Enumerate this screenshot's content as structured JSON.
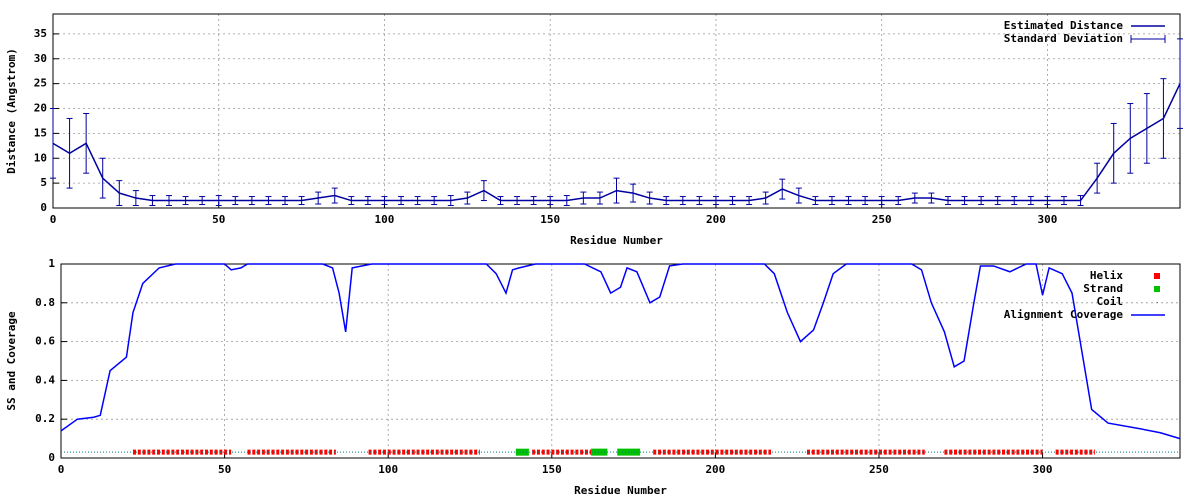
{
  "chart_data": [
    {
      "type": "line",
      "xlabel": "Residue Number",
      "ylabel": "Distance (Angstrom)",
      "xlim": [
        0,
        340
      ],
      "ylim": [
        0,
        39
      ],
      "xticks": [
        0,
        50,
        100,
        150,
        200,
        250,
        300
      ],
      "yticks": [
        0,
        5,
        10,
        15,
        20,
        25,
        30,
        35
      ],
      "grid": true,
      "legend": "upper right",
      "x": [
        0,
        5,
        10,
        15,
        20,
        25,
        30,
        35,
        40,
        45,
        50,
        55,
        60,
        65,
        70,
        75,
        80,
        85,
        90,
        95,
        100,
        105,
        110,
        115,
        120,
        125,
        130,
        135,
        140,
        145,
        150,
        155,
        160,
        165,
        170,
        175,
        180,
        185,
        190,
        195,
        200,
        205,
        210,
        215,
        220,
        225,
        230,
        235,
        240,
        245,
        250,
        255,
        260,
        265,
        270,
        275,
        280,
        285,
        290,
        295,
        300,
        305,
        310,
        315,
        320,
        325,
        330,
        335,
        340
      ],
      "series": [
        {
          "name": "Estimated Distance",
          "color": "#0000a0",
          "style": "line",
          "values": [
            13,
            11,
            13,
            6,
            3,
            2,
            1.5,
            1.5,
            1.5,
            1.5,
            1.5,
            1.5,
            1.5,
            1.5,
            1.5,
            1.5,
            2,
            2.5,
            1.5,
            1.5,
            1.5,
            1.5,
            1.5,
            1.5,
            1.5,
            2,
            3.5,
            1.5,
            1.5,
            1.5,
            1.5,
            1.5,
            2,
            2,
            3.5,
            3,
            2,
            1.5,
            1.5,
            1.5,
            1.5,
            1.5,
            1.5,
            2,
            3.8,
            2.5,
            1.5,
            1.5,
            1.5,
            1.5,
            1.5,
            1.5,
            2,
            2,
            1.5,
            1.5,
            1.5,
            1.5,
            1.5,
            1.5,
            1.5,
            1.5,
            1.5,
            6,
            11,
            14,
            16,
            18,
            25
          ]
        },
        {
          "name": "Standard Deviation",
          "color": "#0000a0",
          "style": "errorbar",
          "values": [
            7,
            7,
            6,
            4,
            2.5,
            1.5,
            1,
            1,
            0.8,
            0.8,
            1,
            0.8,
            0.8,
            0.8,
            0.8,
            0.8,
            1.2,
            1.5,
            0.8,
            0.8,
            0.8,
            0.8,
            0.8,
            0.8,
            1,
            1.2,
            2,
            0.8,
            0.8,
            0.8,
            0.8,
            1,
            1.2,
            1.2,
            2.5,
            1.8,
            1.2,
            0.8,
            0.8,
            0.8,
            0.8,
            0.8,
            0.8,
            1.2,
            2,
            1.5,
            0.8,
            0.8,
            0.8,
            0.8,
            0.8,
            0.8,
            1,
            1,
            0.8,
            0.8,
            0.8,
            0.8,
            0.8,
            0.8,
            0.8,
            0.8,
            1,
            3,
            6,
            7,
            7,
            8,
            9
          ]
        }
      ]
    },
    {
      "type": "line",
      "xlabel": "Residue Number",
      "ylabel": "SS and Coverage",
      "xlim": [
        0,
        342
      ],
      "ylim": [
        0,
        1
      ],
      "xticks": [
        0,
        50,
        100,
        150,
        200,
        250,
        300
      ],
      "yticks": [
        0,
        0.2,
        0.4,
        0.6,
        0.8,
        1
      ],
      "grid": true,
      "legend": "upper right",
      "series": [
        {
          "name": "Helix",
          "color": "#ff0000",
          "style": "points",
          "y": 0.03,
          "ranges": [
            [
              22,
              52
            ],
            [
              57,
              84
            ],
            [
              94,
              128
            ],
            [
              144,
              162
            ],
            [
              181,
              217
            ],
            [
              228,
              264
            ],
            [
              270,
              300
            ],
            [
              304,
              316
            ]
          ]
        },
        {
          "name": "Strand",
          "color": "#00c000",
          "style": "points",
          "y": 0.03,
          "ranges": [
            [
              139,
              143
            ],
            [
              162,
              167
            ],
            [
              170,
              177
            ]
          ]
        },
        {
          "name": "Coil",
          "color": "#008080",
          "style": "dots",
          "y": 0.03,
          "ranges": [
            [
              0,
              342
            ]
          ]
        },
        {
          "name": "Alignment Coverage",
          "color": "#0000ff",
          "style": "line",
          "x": [
            0,
            5,
            10,
            12,
            15,
            20,
            22,
            25,
            30,
            35,
            40,
            50,
            52,
            55,
            57,
            80,
            83,
            85,
            87,
            89,
            95,
            130,
            133,
            136,
            138,
            140,
            145,
            160,
            165,
            168,
            171,
            173,
            176,
            180,
            183,
            186,
            190,
            215,
            218,
            222,
            226,
            230,
            233,
            236,
            240,
            260,
            263,
            266,
            270,
            273,
            276,
            279,
            281,
            285,
            290,
            295,
            298,
            300,
            302,
            306,
            309,
            312,
            315,
            320,
            330,
            336,
            342
          ],
          "values": [
            0.14,
            0.2,
            0.21,
            0.22,
            0.45,
            0.52,
            0.75,
            0.9,
            0.98,
            1,
            1,
            1,
            0.97,
            0.98,
            1,
            1,
            0.98,
            0.85,
            0.65,
            0.98,
            1,
            1,
            0.95,
            0.85,
            0.97,
            0.98,
            1,
            1,
            0.96,
            0.85,
            0.88,
            0.98,
            0.96,
            0.8,
            0.83,
            0.99,
            1,
            1,
            0.95,
            0.75,
            0.6,
            0.66,
            0.8,
            0.95,
            1,
            1,
            0.97,
            0.8,
            0.65,
            0.47,
            0.5,
            0.8,
            0.99,
            0.99,
            0.96,
            1,
            1,
            0.84,
            0.98,
            0.95,
            0.85,
            0.55,
            0.25,
            0.18,
            0.15,
            0.13,
            0.1
          ]
        }
      ]
    }
  ]
}
